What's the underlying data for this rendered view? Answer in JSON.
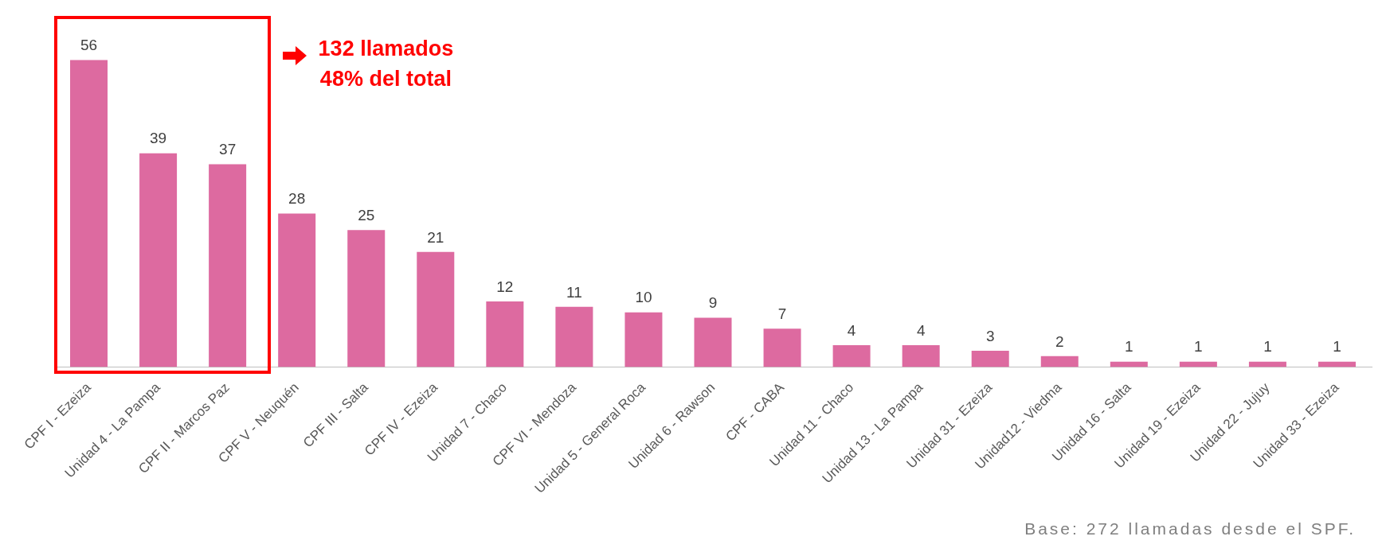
{
  "chart_data": {
    "type": "bar",
    "categories": [
      "CPF I - Ezeiza",
      "Unidad 4 - La Pampa",
      "CPF II - Marcos Paz",
      "CPF V - Neuquén",
      "CPF III - Salta",
      "CPF IV - Ezeiza",
      "Unidad 7 - Chaco",
      "CPF VI - Mendoza",
      "Unidad 5 - General Roca",
      "Unidad 6 - Rawson",
      "CPF - CABA",
      "Unidad 11 - Chaco",
      "Unidad 13 - La Pampa",
      "Unidad 31 - Ezeiza",
      "Unidad12 - Viedma",
      "Unidad 16 - Salta",
      "Unidad 19 - Ezeiza",
      "Unidad 22 - Jujuy",
      "Unidad 33 - Ezeiza"
    ],
    "values": [
      56,
      39,
      37,
      28,
      25,
      21,
      12,
      11,
      10,
      9,
      7,
      4,
      4,
      3,
      2,
      1,
      1,
      1,
      1
    ],
    "color": "#dd6aa0",
    "data_labels": true,
    "grid": false,
    "legend": false,
    "annotations": [
      "132 llamados",
      "48% del total",
      "Base: 272 llamadas desde el SPF."
    ]
  }
}
